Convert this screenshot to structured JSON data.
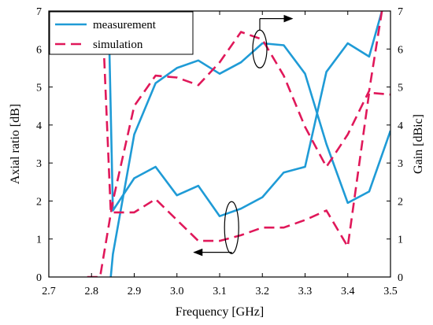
{
  "chart_data": {
    "type": "line",
    "xlabel": "Frequency [GHz]",
    "ylabel_left": "Axial ratio [dB]",
    "ylabel_right": "Gain [dBic]",
    "xlim": [
      2.7,
      3.5
    ],
    "ylim_left": [
      0,
      7
    ],
    "ylim_right": [
      0,
      7
    ],
    "x_ticks": [
      "2.7",
      "2.8",
      "2.9",
      "3.0",
      "3.1",
      "3.2",
      "3.3",
      "3.4",
      "3.5"
    ],
    "y_ticks_left": [
      "0",
      "1",
      "2",
      "3",
      "4",
      "5",
      "6",
      "7"
    ],
    "y_ticks_right": [
      "0",
      "1",
      "2",
      "3",
      "4",
      "5",
      "6",
      "7"
    ],
    "grid": false,
    "legend": {
      "placement": "top-left",
      "entries": [
        {
          "label": "measurement",
          "color": "#1f9bd6",
          "style": "solid"
        },
        {
          "label": "simulation",
          "color": "#e0185a",
          "style": "dashed"
        }
      ]
    },
    "series": [
      {
        "name": "measurement",
        "quantity": "axial ratio",
        "axis": "left",
        "color": "#1f9bd6",
        "style": "solid",
        "x": [
          2.84,
          2.85,
          2.9,
          2.95,
          3.0,
          3.05,
          3.1,
          3.15,
          3.2,
          3.25,
          3.3,
          3.35,
          3.4,
          3.45,
          3.48
        ],
        "y": [
          7.0,
          1.75,
          2.6,
          2.9,
          2.15,
          2.4,
          1.6,
          1.8,
          2.1,
          2.75,
          2.9,
          5.4,
          6.15,
          5.8,
          7.0
        ]
      },
      {
        "name": "measurement",
        "quantity": "gain",
        "axis": "right",
        "color": "#1f9bd6",
        "style": "solid",
        "x": [
          2.845,
          2.85,
          2.9,
          2.95,
          3.0,
          3.05,
          3.1,
          3.15,
          3.2,
          3.25,
          3.3,
          3.35,
          3.4,
          3.45,
          3.5
        ],
        "y": [
          0.0,
          0.6,
          3.75,
          5.1,
          5.5,
          5.7,
          5.35,
          5.65,
          6.15,
          6.1,
          5.35,
          3.5,
          1.95,
          2.25,
          3.85
        ]
      },
      {
        "name": "simulation",
        "quantity": "axial ratio",
        "axis": "left",
        "color": "#e0185a",
        "style": "dashed",
        "x": [
          2.825,
          2.845,
          2.9,
          2.95,
          3.0,
          3.05,
          3.1,
          3.15,
          3.2,
          3.25,
          3.3,
          3.35,
          3.4,
          3.45,
          3.5
        ],
        "y": [
          7.0,
          1.7,
          1.7,
          2.05,
          1.5,
          0.95,
          0.95,
          1.1,
          1.3,
          1.3,
          1.5,
          1.75,
          0.8,
          4.85,
          4.8
        ]
      },
      {
        "name": "simulation",
        "quantity": "gain",
        "axis": "right",
        "color": "#e0185a",
        "style": "dashed",
        "x": [
          2.79,
          2.82,
          2.85,
          2.9,
          2.95,
          3.0,
          3.05,
          3.1,
          3.15,
          3.2,
          3.25,
          3.3,
          3.35,
          3.4,
          3.45,
          3.48
        ],
        "y": [
          0.0,
          0.0,
          2.0,
          4.5,
          5.3,
          5.25,
          5.05,
          5.65,
          6.45,
          6.25,
          5.3,
          3.95,
          2.9,
          3.75,
          4.9,
          7.0
        ]
      }
    ],
    "annotations": [
      {
        "kind": "ellipse-arrow",
        "marks": "gain curves",
        "arrow_direction": "right"
      },
      {
        "kind": "ellipse-arrow",
        "marks": "axial ratio curves",
        "arrow_direction": "left"
      }
    ]
  }
}
